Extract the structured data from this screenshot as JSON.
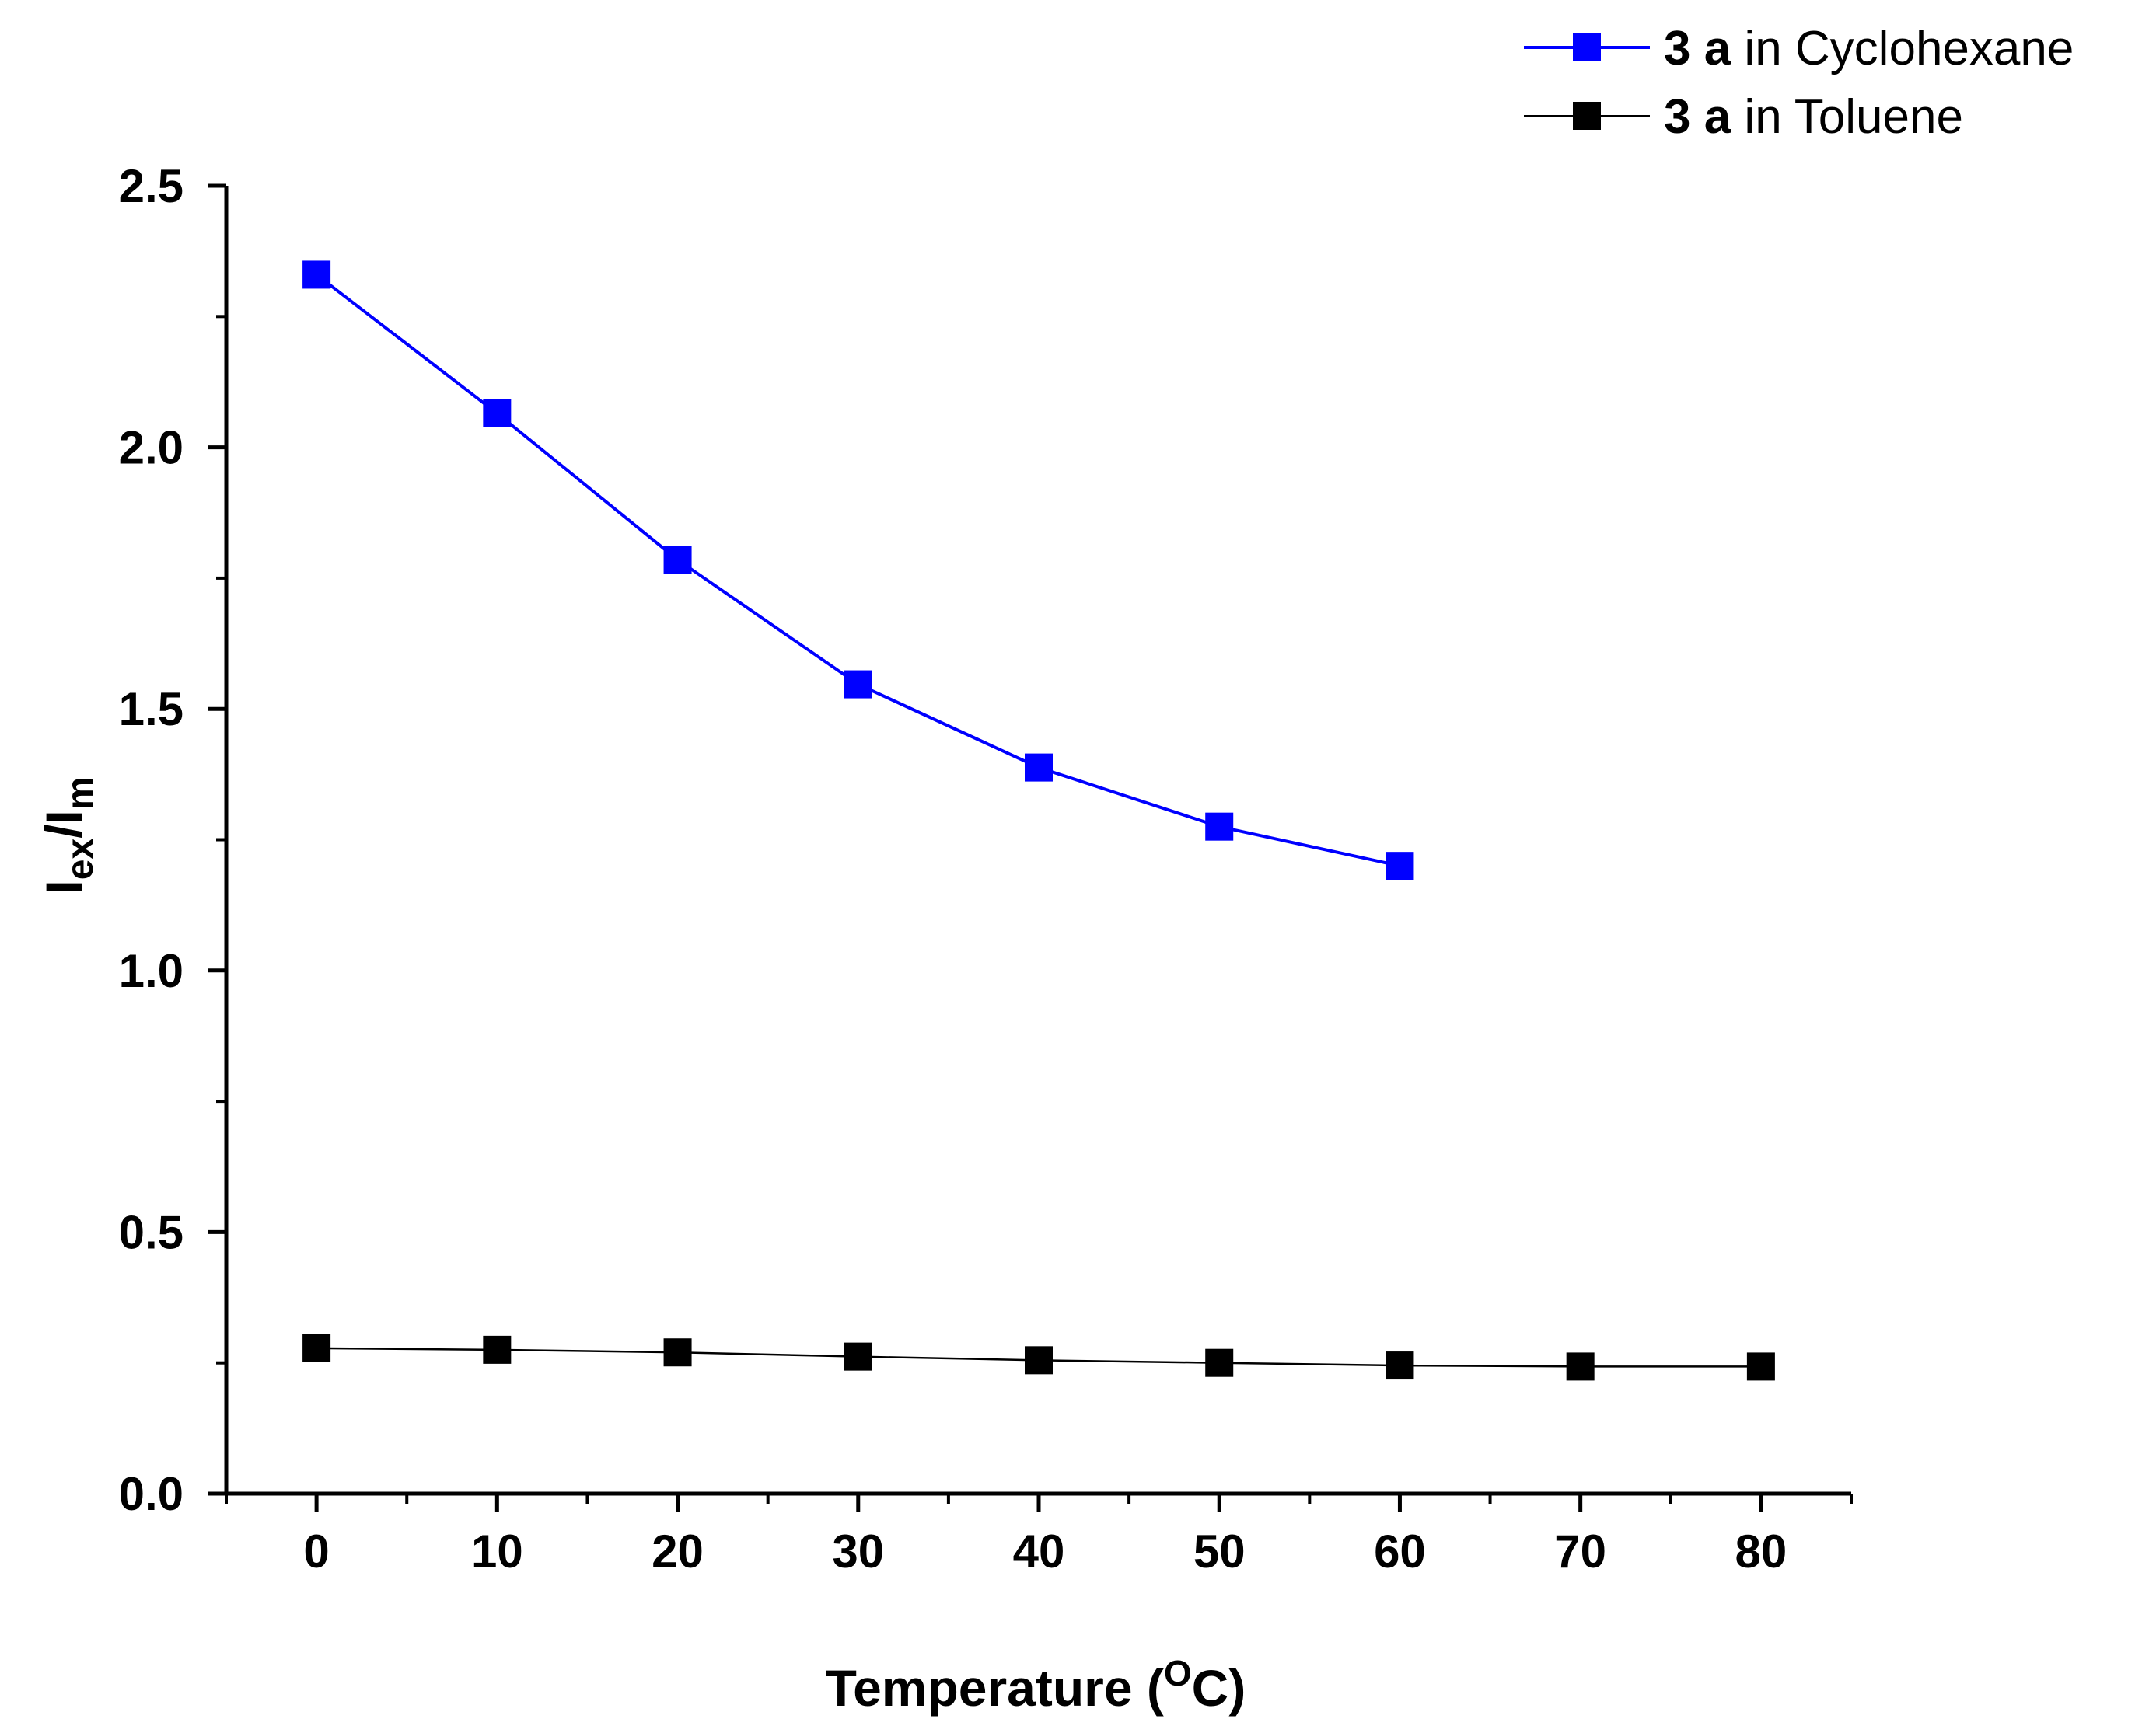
{
  "chart_data": {
    "type": "line",
    "title": "",
    "xlabel": "Temperature (",
    "xlabel_unit_super": "O",
    "xlabel_unit_rest": "C)",
    "ylabel_main": "I",
    "ylabel_sub1": "ex",
    "ylabel_sep": "/I",
    "ylabel_sub2": "m",
    "xlim": [
      -5,
      85
    ],
    "ylim": [
      0,
      2.5
    ],
    "x_ticks": [
      0,
      10,
      20,
      30,
      40,
      50,
      60,
      70,
      80
    ],
    "x_tick_labels": [
      "0",
      "10",
      "20",
      "30",
      "40",
      "50",
      "60",
      "70",
      "80"
    ],
    "x_minor_ticks": [
      -5,
      5,
      15,
      25,
      35,
      45,
      55,
      65,
      75,
      85
    ],
    "y_ticks": [
      0,
      0.5,
      1.0,
      1.5,
      2.0,
      2.5
    ],
    "y_tick_labels": [
      "0.0",
      "0.5",
      "1.0",
      "1.5",
      "2.0",
      "2.5"
    ],
    "y_minor_ticks": [
      0.25,
      0.75,
      1.25,
      1.75,
      2.25
    ],
    "grid": false,
    "legend_position": "top-right",
    "series": [
      {
        "name": "3 a in Cyclohexane",
        "legend_bold": "3 a",
        "legend_rest": " in Cyclohexane",
        "color": "#0000ff",
        "marker_color": "#0000ff",
        "marker": "square",
        "x": [
          0,
          10,
          20,
          30,
          40,
          50,
          60
        ],
        "y": [
          2.33,
          2.065,
          1.785,
          1.547,
          1.388,
          1.275,
          1.2
        ]
      },
      {
        "name": "3 a in Toluene",
        "legend_bold": "3 a",
        "legend_rest": " in Toluene",
        "color": "#000000",
        "marker_color": "#000000",
        "marker": "square",
        "x": [
          0,
          10,
          20,
          30,
          40,
          50,
          60,
          70,
          80
        ],
        "y": [
          0.278,
          0.275,
          0.27,
          0.262,
          0.255,
          0.25,
          0.245,
          0.243,
          0.243
        ]
      }
    ]
  }
}
